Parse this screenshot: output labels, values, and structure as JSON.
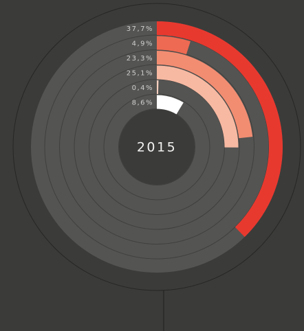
{
  "chart_data": {
    "type": "radial_bar",
    "title": "2015",
    "xlim": [
      0,
      100
    ],
    "categories": [
      null,
      null,
      null,
      null,
      null,
      null
    ],
    "values": [
      37.7,
      4.9,
      23.3,
      25.1,
      0.4,
      8.6
    ],
    "value_labels": [
      "37,7%",
      "4,9%",
      "23,3%",
      "25,1%",
      "0,4%",
      "8,6%"
    ],
    "colors": [
      "#e8392f",
      "#ee6a52",
      "#f28d72",
      "#f7b9a2",
      "#f6cfc0",
      "#ffffff"
    ]
  }
}
